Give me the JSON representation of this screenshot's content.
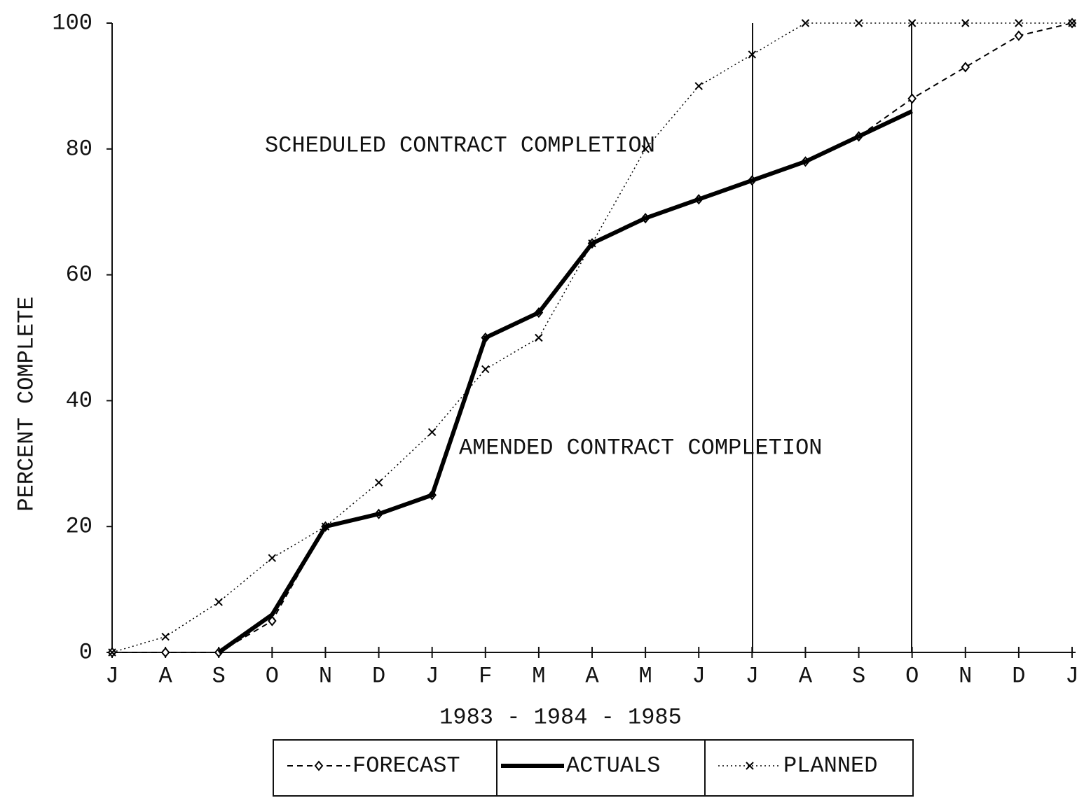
{
  "chart_data": {
    "type": "line",
    "x_label": "1983 - 1984 - 1985",
    "y_label": "PERCENT COMPLETE",
    "annotations": [
      "SCHEDULED CONTRACT COMPLETION",
      "AMENDED CONTRACT COMPLETION"
    ],
    "categories": [
      "J",
      "A",
      "S",
      "O",
      "N",
      "D",
      "J",
      "F",
      "M",
      "A",
      "M",
      "J",
      "J",
      "A",
      "S",
      "O",
      "N",
      "D",
      "J"
    ],
    "series": [
      {
        "name": "FORECAST",
        "color": "#000000",
        "line_style": "dashed",
        "marker": "diamond",
        "values": [
          0,
          0,
          0,
          5,
          20,
          22,
          25,
          50,
          54,
          65,
          69,
          72,
          75,
          78,
          82,
          88,
          93,
          98,
          100
        ]
      },
      {
        "name": "ACTUALS",
        "color": "#000000",
        "line_style": "solid",
        "marker": "none",
        "values": [
          null,
          null,
          0,
          6,
          20,
          22,
          25,
          50,
          54,
          65,
          69,
          72,
          75,
          78,
          82,
          86,
          null,
          null,
          null
        ]
      },
      {
        "name": "PLANNED",
        "color": "#000000",
        "line_style": "dotted",
        "marker": "x",
        "values": [
          0,
          2.5,
          8,
          15,
          20,
          27,
          35,
          45,
          50,
          65,
          80,
          90,
          95,
          100,
          100,
          100,
          100,
          100,
          100
        ]
      }
    ],
    "ylim": [
      0,
      100
    ],
    "yticks": [
      0,
      20,
      40,
      60,
      80,
      100
    ],
    "legend": "bottom"
  }
}
